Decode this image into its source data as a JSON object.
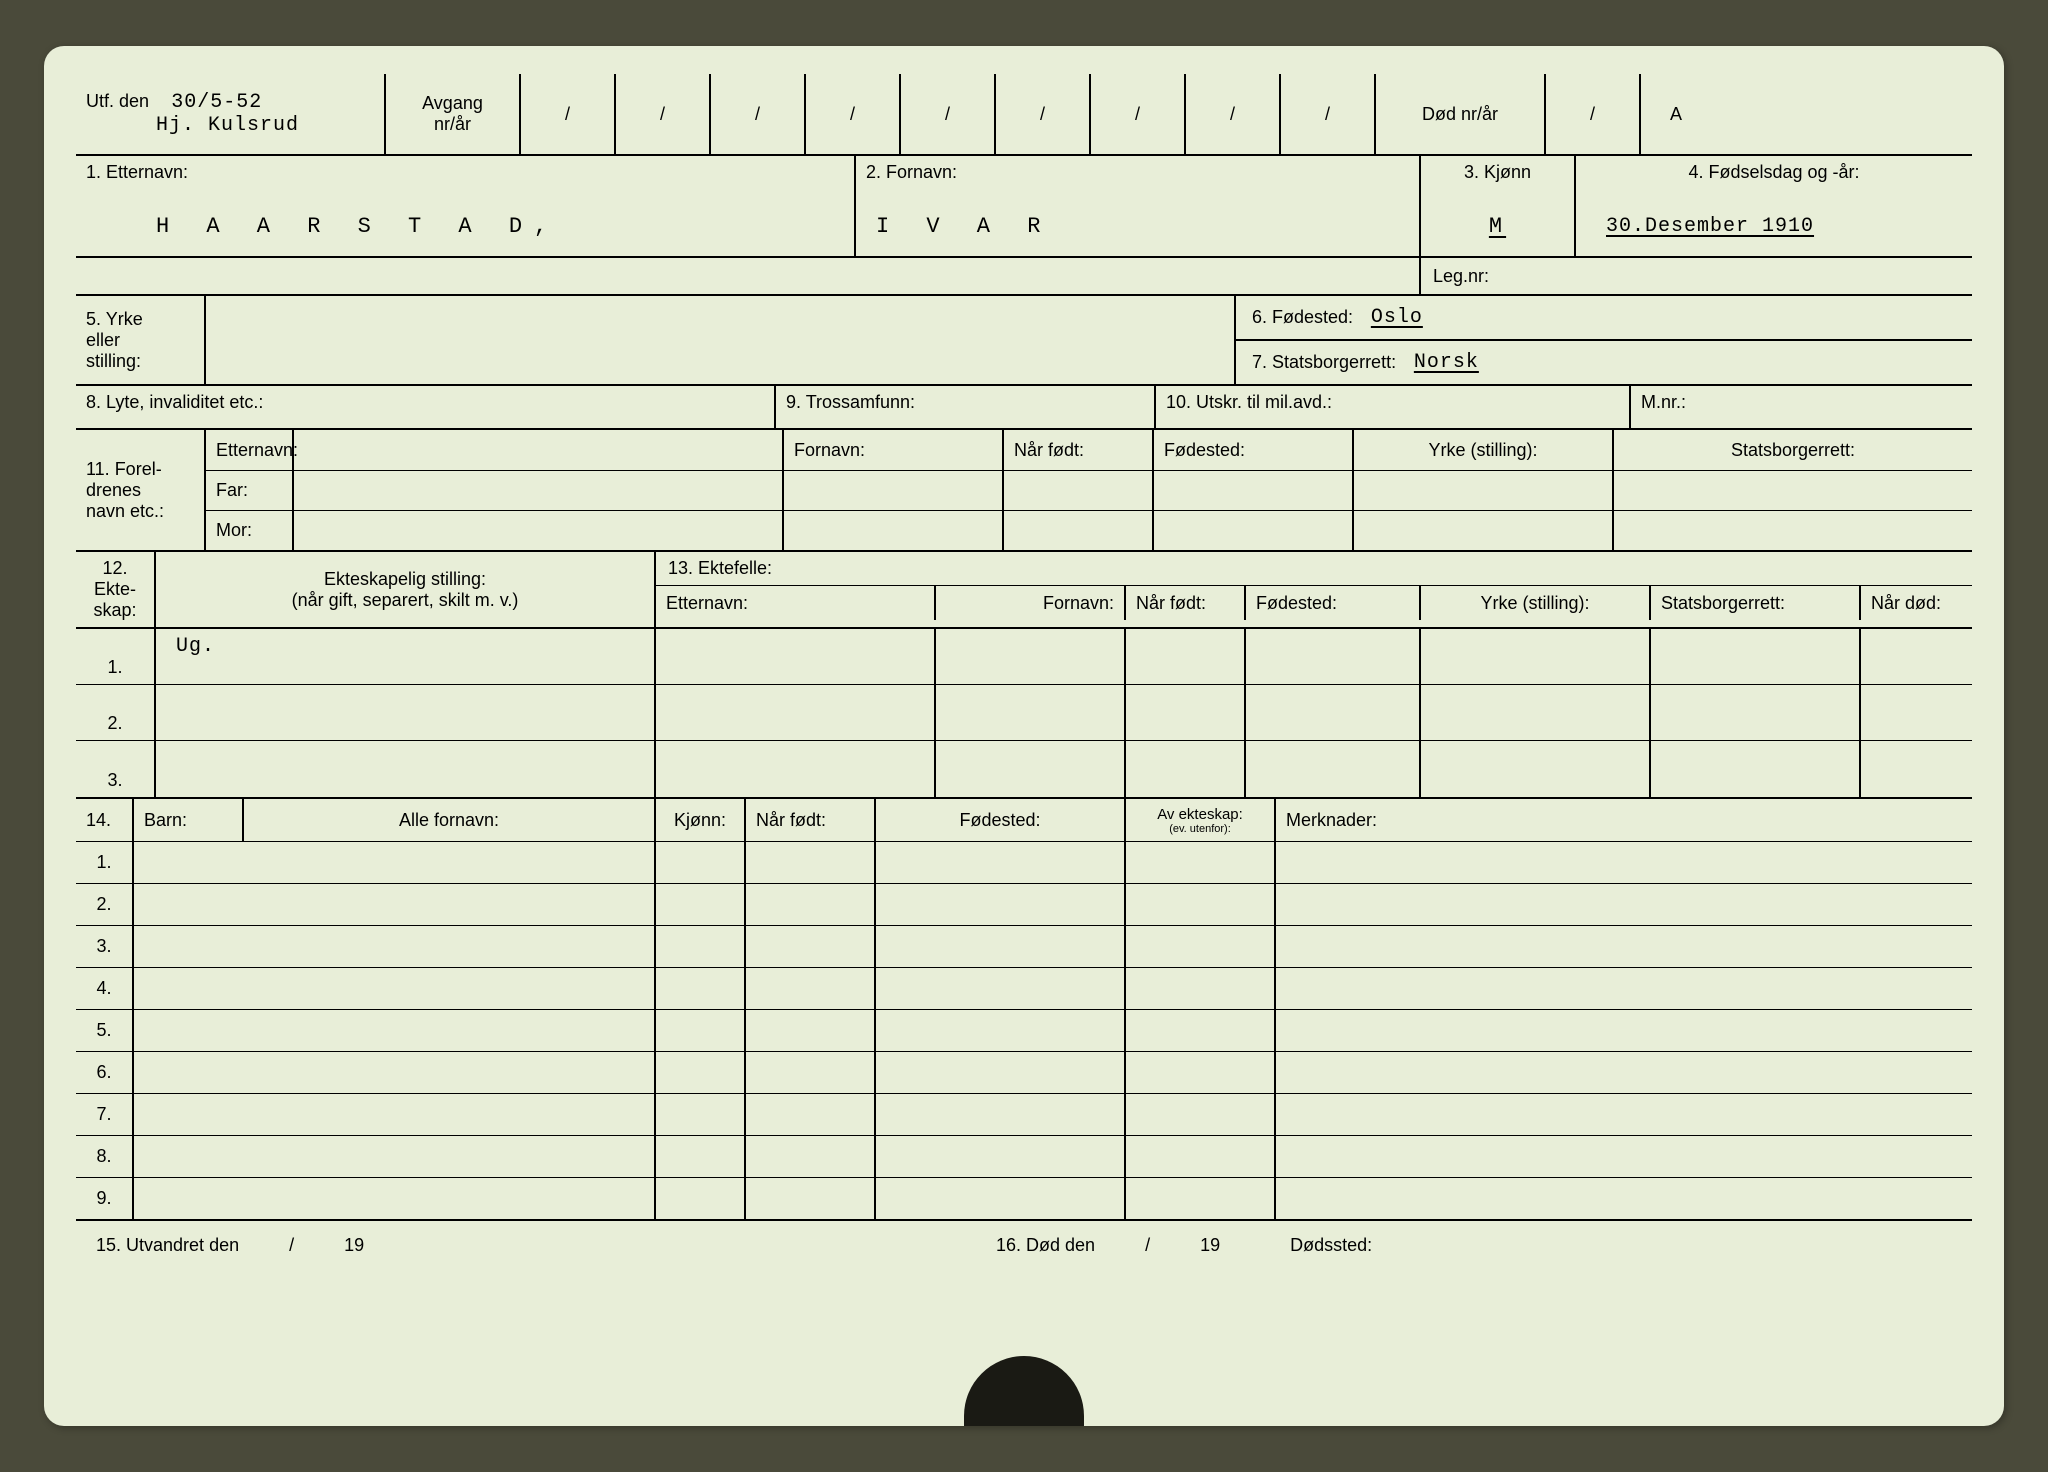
{
  "header": {
    "utf_label": "Utf. den",
    "utf_date": "30/5-52",
    "utf_name": "Hj. Kulsrud",
    "avgang_label1": "Avgang",
    "avgang_label2": "nr/år",
    "slash": "/",
    "dod_label": "Død nr/år",
    "a": "A"
  },
  "sec1": {
    "etternavn_label": "1. Etternavn:",
    "etternavn": "H A A R S T A D,",
    "fornavn_label": "2. Fornavn:",
    "fornavn": "I V A R",
    "kjonn_label": "3. Kjønn",
    "kjonn": "M",
    "fodsel_label": "4. Fødselsdag og -år:",
    "fodsel": "30.Desember 1910",
    "legnr_label": "Leg.nr:"
  },
  "sec5": {
    "yrke_label1": "5. Yrke",
    "yrke_label2": "eller",
    "yrke_label3": "stilling:",
    "fodested_label": "6. Fødested:",
    "fodested": "Oslo",
    "stats_label": "7. Statsborgerrett:",
    "stats": "Norsk"
  },
  "sec8": {
    "lyte_label": "8. Lyte, invaliditet etc.:",
    "tros_label": "9. Trossamfunn:",
    "utskr_label": "10. Utskr. til mil.avd.:",
    "mnr_label": "M.nr.:"
  },
  "sec11": {
    "title1": "11. Forel-",
    "title2": "drenes",
    "title3": "navn etc.:",
    "etternavn": "Etternavn:",
    "fornavn": "Fornavn:",
    "narfodt": "Når født:",
    "fodested": "Fødested:",
    "yrke": "Yrke (stilling):",
    "stats": "Statsborgerrett:",
    "far": "Far:",
    "mor": "Mor:"
  },
  "sec12": {
    "title1": "12.",
    "title2": "Ekte-",
    "title3": "skap:",
    "stilling_l1": "Ekteskapelig stilling:",
    "stilling_l2": "(når gift, separert, skilt m. v.)",
    "ektefelle": "13. Ektefelle:",
    "etternavn": "Etternavn:",
    "fornavn": "Fornavn:",
    "narfodt": "Når født:",
    "fodested": "Fødested:",
    "yrke": "Yrke (stilling):",
    "stats": "Statsborgerrett:",
    "nardod": "Når død:",
    "rows": [
      "1.",
      "2.",
      "3."
    ],
    "ug": "Ug."
  },
  "sec14": {
    "num_label": "14.",
    "barn_label": "Barn:",
    "fornavn": "Alle fornavn:",
    "kjonn": "Kjønn:",
    "narfodt": "Når født:",
    "fodested": "Fødested:",
    "avekt1": "Av ekteskap:",
    "avekt2": "(ev. utenfor):",
    "merk": "Merknader:",
    "rows": [
      "1.",
      "2.",
      "3.",
      "4.",
      "5.",
      "6.",
      "7.",
      "8.",
      "9."
    ]
  },
  "bottom": {
    "utv": "15. Utvandret den",
    "slash": "/",
    "y19": "19",
    "dod": "16. Død den",
    "dodssted": "Dødssted:"
  }
}
